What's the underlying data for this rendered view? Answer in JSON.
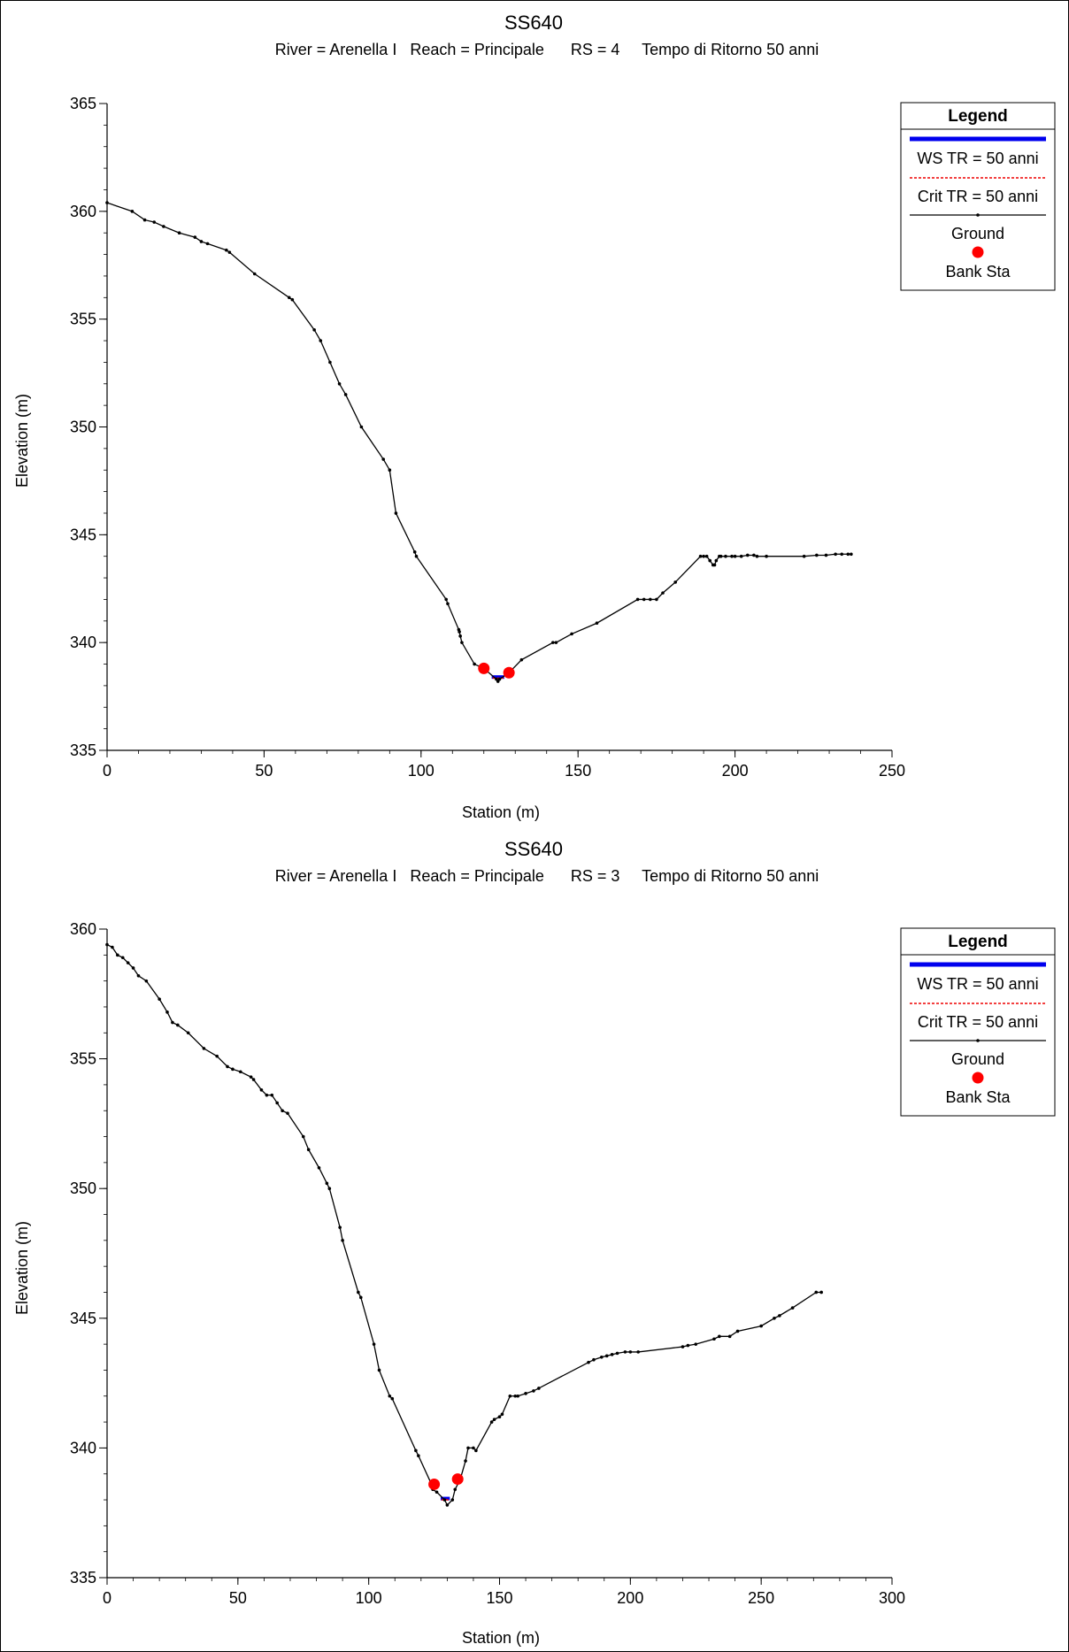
{
  "chart_data": [
    {
      "type": "line",
      "title": "SS640",
      "subtitle": "River = Arenella I   Reach = Principale      RS = 4     Tempo di Ritorno 50 anni",
      "xlabel": "Station (m)",
      "ylabel": "Elevation (m)",
      "xlim": [
        0,
        250
      ],
      "ylim": [
        335,
        365
      ],
      "xticks": [
        0,
        50,
        100,
        150,
        200,
        250
      ],
      "yticks": [
        335,
        340,
        345,
        350,
        355,
        360,
        365
      ],
      "grid": false,
      "legend_position": "top-right",
      "legend": {
        "title": "Legend",
        "entries": [
          "WS TR = 50 anni",
          "Crit TR = 50 anni",
          "Ground",
          "Bank Sta"
        ]
      },
      "series": [
        {
          "name": "Ground",
          "color": "#000000",
          "x": [
            0,
            8,
            12,
            15,
            18,
            23,
            28,
            30,
            32,
            38,
            39,
            47,
            58,
            59,
            66,
            68,
            71,
            74,
            76,
            81,
            88,
            90,
            92,
            98,
            98.5,
            108,
            108.5,
            112,
            112.2,
            112.5,
            113,
            117,
            120,
            124,
            124.5,
            125,
            128,
            132,
            142,
            143,
            148,
            156,
            169,
            171,
            173,
            175,
            177,
            181,
            189,
            190,
            191,
            192,
            193,
            193.5,
            194,
            195,
            195.5,
            197,
            199,
            200,
            202,
            204,
            206,
            207,
            210,
            222,
            226,
            229,
            232,
            234,
            236,
            237
          ],
          "y": [
            360.4,
            360,
            359.6,
            359.5,
            359.3,
            359,
            358.8,
            358.6,
            358.5,
            358.2,
            358.1,
            357.1,
            356,
            355.9,
            354.5,
            354,
            353,
            352,
            351.5,
            350,
            348.5,
            348,
            346,
            344.2,
            344,
            342,
            341.8,
            340.6,
            340.5,
            340.3,
            340,
            339,
            338.8,
            338.3,
            338.2,
            338.3,
            338.6,
            339.2,
            340,
            340,
            340.4,
            340.9,
            342,
            342,
            342,
            342,
            342.3,
            342.8,
            344,
            344,
            344,
            343.8,
            343.6,
            343.6,
            343.8,
            344,
            344,
            344,
            344,
            344,
            344,
            344.05,
            344.05,
            344,
            344,
            344,
            344.05,
            344.05,
            344.1,
            344.1,
            344.1,
            344.1
          ]
        },
        {
          "name": "WS TR = 50 anni",
          "color": "#0000ee",
          "x": [
            122.5,
            126.5
          ],
          "y": [
            338.4,
            338.4
          ]
        },
        {
          "name": "Crit TR = 50 anni",
          "color": "#ee0000",
          "x": [
            122.8,
            126.2
          ],
          "y": [
            338.35,
            338.35
          ]
        },
        {
          "name": "Bank Sta",
          "color": "#ff0000",
          "x": [
            120,
            128
          ],
          "y": [
            338.8,
            338.6
          ]
        }
      ]
    },
    {
      "type": "line",
      "title": "SS640",
      "subtitle": "River = Arenella I   Reach = Principale      RS = 3     Tempo di Ritorno 50 anni",
      "xlabel": "Station (m)",
      "ylabel": "Elevation (m)",
      "xlim": [
        0,
        300
      ],
      "ylim": [
        335,
        360
      ],
      "xticks": [
        0,
        50,
        100,
        150,
        200,
        250,
        300
      ],
      "yticks": [
        335,
        340,
        345,
        350,
        355,
        360
      ],
      "grid": false,
      "legend_position": "top-right",
      "legend": {
        "title": "Legend",
        "entries": [
          "WS TR = 50 anni",
          "Crit TR = 50 anni",
          "Ground",
          "Bank Sta"
        ]
      },
      "series": [
        {
          "name": "Ground",
          "color": "#000000",
          "x": [
            0,
            2,
            4,
            6,
            8,
            10,
            12,
            15,
            20,
            23,
            25,
            27,
            31,
            37,
            42,
            46,
            48,
            51,
            55,
            56,
            59,
            61,
            63,
            65,
            67,
            69,
            75,
            77,
            81,
            84,
            85,
            89,
            90,
            96,
            97,
            102,
            104,
            108,
            109,
            118,
            119,
            124,
            124.5,
            126,
            129,
            130,
            132,
            133,
            135,
            137,
            138,
            140,
            141,
            147,
            148,
            150,
            151,
            154,
            156,
            157,
            160,
            163,
            165,
            184,
            186,
            189,
            191,
            193,
            195,
            198,
            200,
            203,
            220,
            222,
            225,
            232,
            234,
            238,
            241,
            250,
            255,
            257,
            262,
            271,
            273
          ],
          "y": [
            359.4,
            359.3,
            359,
            358.9,
            358.7,
            358.5,
            358.2,
            358,
            357.3,
            356.8,
            356.4,
            356.3,
            356,
            355.4,
            355.1,
            354.7,
            354.6,
            354.5,
            354.3,
            354.2,
            353.8,
            353.6,
            353.6,
            353.3,
            353,
            352.9,
            352,
            351.5,
            350.8,
            350.2,
            350,
            348.5,
            348,
            346,
            345.8,
            344,
            343,
            342,
            341.9,
            339.9,
            339.7,
            338.6,
            338.4,
            338.3,
            338,
            337.8,
            338,
            338.4,
            338.8,
            339.5,
            340,
            340,
            339.9,
            341,
            341.1,
            341.2,
            341.3,
            342,
            342,
            342,
            342.1,
            342.2,
            342.3,
            343.3,
            343.4,
            343.5,
            343.55,
            343.6,
            343.65,
            343.7,
            343.7,
            343.7,
            343.9,
            343.95,
            344,
            344.2,
            344.3,
            344.3,
            344.5,
            344.7,
            345,
            345.1,
            345.4,
            346,
            346
          ]
        },
        {
          "name": "WS TR = 50 anni",
          "color": "#0000ee",
          "x": [
            127.5,
            131
          ],
          "y": [
            338.05,
            338.05
          ]
        },
        {
          "name": "Crit TR = 50 anni",
          "color": "#ee0000",
          "x": [
            127.8,
            130.7
          ],
          "y": [
            338.0,
            338.0
          ]
        },
        {
          "name": "Bank Sta",
          "color": "#ff0000",
          "x": [
            125,
            134
          ],
          "y": [
            338.6,
            338.8
          ]
        }
      ]
    }
  ]
}
